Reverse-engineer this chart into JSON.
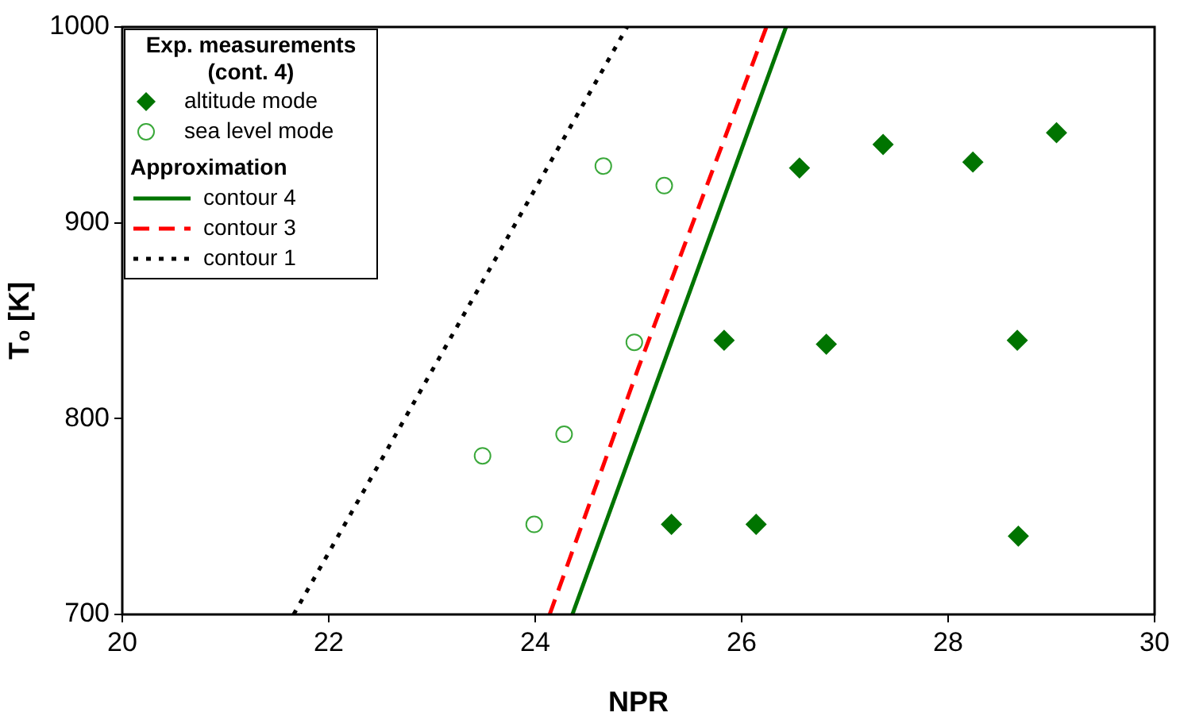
{
  "chart_data": {
    "type": "scatter",
    "xlabel": "NPR",
    "ylabel": "T₀ [K]",
    "xlim": [
      20,
      30
    ],
    "xticks": [
      20,
      22,
      24,
      26,
      28,
      30
    ],
    "ylim": [
      700,
      1000
    ],
    "yticks": [
      700,
      800,
      900,
      1000
    ],
    "grid": false,
    "legend": "top left",
    "legend_title": "Exp. measurements (cont. 4)",
    "annotations": [
      "Approximation"
    ],
    "series": [
      {
        "name": "altitude mode",
        "type": "scatter",
        "marker": "diamond",
        "color": "#007400",
        "x": [
          26.56,
          27.37,
          28.24,
          29.05,
          25.83,
          26.82,
          28.67,
          25.32,
          26.14,
          28.68
        ],
        "values": [
          928,
          940,
          931,
          946,
          840,
          838,
          840,
          746,
          746,
          740
        ]
      },
      {
        "name": "sea level mode",
        "type": "scatter",
        "marker": "circle",
        "color": "#3aa83a",
        "x": [
          24.66,
          25.25,
          24.96,
          24.28,
          23.49,
          23.99
        ],
        "values": [
          929,
          919,
          839,
          792,
          781,
          746
        ]
      },
      {
        "name": "contour 4",
        "type": "line",
        "marker": "none",
        "line_style": "solid",
        "color": "#007400",
        "x": [
          24.36,
          26.43
        ],
        "values": [
          700,
          1000
        ]
      },
      {
        "name": "contour 3",
        "type": "line",
        "marker": "none",
        "line_style": "dashed",
        "color": "#ff0000",
        "x": [
          24.14,
          25.0,
          26.24
        ],
        "values": [
          700,
          826,
          1000
        ]
      },
      {
        "name": "contour 1",
        "type": "line",
        "marker": "none",
        "line_style": "dotted",
        "color": "#000000",
        "x": [
          21.66,
          24.89
        ],
        "values": [
          700,
          1000
        ]
      }
    ]
  }
}
